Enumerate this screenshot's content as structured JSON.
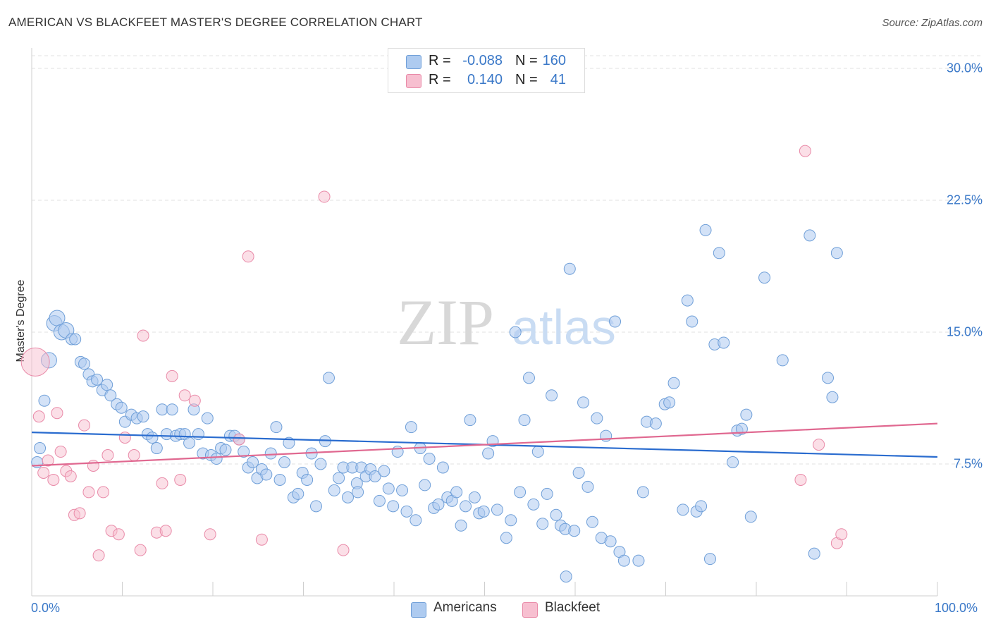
{
  "title": "AMERICAN VS BLACKFEET MASTER'S DEGREE CORRELATION CHART",
  "source": "Source: ZipAtlas.com",
  "watermark": {
    "zip": "ZIP",
    "atlas": "atlas"
  },
  "colors": {
    "americans_fill": "#aecbf0",
    "americans_stroke": "#6f9fd8",
    "americans_line": "#2a6ccf",
    "blackfeet_fill": "#f7bfd0",
    "blackfeet_stroke": "#e98aa8",
    "blackfeet_line": "#e06890",
    "accent_text": "#3a78c8"
  },
  "legend": {
    "r_label": "R =",
    "n_label": "N =",
    "rows": [
      {
        "name": "Americans",
        "r": "-0.088",
        "n": "160"
      },
      {
        "name": "Blackfeet",
        "r": "0.140",
        "n": "41"
      }
    ]
  },
  "chart_data": {
    "type": "scatter",
    "title": "AMERICAN VS BLACKFEET MASTER'S DEGREE CORRELATION CHART",
    "xlabel": "",
    "ylabel": "Master's Degree",
    "xlim": [
      0,
      100
    ],
    "ylim": [
      0,
      30
    ],
    "x_tick_labels": [
      "0.0%",
      "100.0%"
    ],
    "y_ticks": [
      7.5,
      15.0,
      22.5,
      30.0
    ],
    "y_tick_labels": [
      "7.5%",
      "15.0%",
      "22.5%",
      "30.0%"
    ],
    "legend_position": "bottom-center",
    "series": [
      {
        "name": "Americans",
        "r": -0.088,
        "n": 160,
        "trend": {
          "x": [
            0,
            100
          ],
          "y": [
            9.3,
            7.9
          ]
        },
        "points": [
          [
            0.6,
            7.6
          ],
          [
            0.9,
            8.4
          ],
          [
            1.4,
            11.1
          ],
          [
            1.9,
            13.4
          ],
          [
            2.5,
            15.5
          ],
          [
            2.8,
            15.8
          ],
          [
            3.3,
            15.0
          ],
          [
            3.8,
            15.1
          ],
          [
            4.4,
            14.6
          ],
          [
            4.8,
            14.6
          ],
          [
            5.4,
            13.3
          ],
          [
            5.8,
            13.2
          ],
          [
            6.3,
            12.6
          ],
          [
            6.7,
            12.2
          ],
          [
            7.2,
            12.3
          ],
          [
            7.8,
            11.7
          ],
          [
            8.3,
            12.0
          ],
          [
            8.7,
            11.4
          ],
          [
            9.4,
            10.9
          ],
          [
            9.9,
            10.7
          ],
          [
            10.3,
            9.9
          ],
          [
            11.0,
            10.3
          ],
          [
            11.6,
            10.1
          ],
          [
            12.3,
            10.2
          ],
          [
            12.8,
            9.2
          ],
          [
            13.3,
            9.0
          ],
          [
            13.8,
            8.4
          ],
          [
            14.4,
            10.6
          ],
          [
            14.9,
            9.2
          ],
          [
            15.5,
            10.6
          ],
          [
            15.9,
            9.1
          ],
          [
            16.4,
            9.2
          ],
          [
            16.9,
            9.2
          ],
          [
            17.4,
            8.7
          ],
          [
            17.9,
            10.6
          ],
          [
            18.4,
            9.2
          ],
          [
            18.9,
            8.1
          ],
          [
            19.4,
            10.1
          ],
          [
            19.8,
            8.0
          ],
          [
            20.4,
            7.8
          ],
          [
            20.9,
            8.4
          ],
          [
            21.4,
            8.3
          ],
          [
            21.9,
            9.1
          ],
          [
            22.4,
            9.1
          ],
          [
            22.9,
            8.9
          ],
          [
            23.4,
            8.2
          ],
          [
            23.9,
            7.3
          ],
          [
            24.4,
            7.6
          ],
          [
            24.9,
            6.7
          ],
          [
            25.4,
            7.2
          ],
          [
            25.9,
            6.9
          ],
          [
            26.4,
            8.1
          ],
          [
            27.0,
            9.6
          ],
          [
            27.4,
            6.6
          ],
          [
            27.9,
            7.6
          ],
          [
            28.4,
            8.7
          ],
          [
            28.9,
            5.6
          ],
          [
            29.4,
            5.8
          ],
          [
            29.9,
            7.0
          ],
          [
            30.4,
            6.6
          ],
          [
            30.9,
            8.1
          ],
          [
            31.4,
            5.1
          ],
          [
            31.9,
            7.5
          ],
          [
            32.4,
            8.8
          ],
          [
            32.8,
            12.4
          ],
          [
            33.4,
            6.0
          ],
          [
            33.9,
            6.7
          ],
          [
            34.4,
            7.3
          ],
          [
            34.9,
            5.6
          ],
          [
            35.4,
            7.3
          ],
          [
            35.9,
            6.4
          ],
          [
            36.4,
            7.3
          ],
          [
            36.9,
            6.8
          ],
          [
            37.4,
            7.2
          ],
          [
            37.9,
            6.8
          ],
          [
            38.4,
            5.4
          ],
          [
            38.9,
            7.1
          ],
          [
            39.4,
            6.1
          ],
          [
            39.9,
            5.1
          ],
          [
            40.4,
            8.2
          ],
          [
            40.9,
            6.0
          ],
          [
            41.4,
            4.8
          ],
          [
            41.9,
            9.6
          ],
          [
            42.4,
            4.3
          ],
          [
            42.9,
            8.4
          ],
          [
            43.4,
            6.3
          ],
          [
            43.9,
            7.8
          ],
          [
            44.4,
            5.0
          ],
          [
            44.9,
            5.2
          ],
          [
            45.4,
            7.3
          ],
          [
            45.9,
            5.6
          ],
          [
            46.4,
            5.4
          ],
          [
            46.9,
            5.9
          ],
          [
            47.4,
            4.0
          ],
          [
            47.9,
            5.1
          ],
          [
            48.4,
            10.0
          ],
          [
            48.9,
            5.6
          ],
          [
            49.4,
            4.7
          ],
          [
            49.9,
            4.8
          ],
          [
            50.4,
            8.1
          ],
          [
            50.9,
            8.8
          ],
          [
            51.4,
            4.9
          ],
          [
            52.4,
            3.3
          ],
          [
            52.9,
            4.3
          ],
          [
            53.4,
            15.0
          ],
          [
            53.9,
            5.9
          ],
          [
            54.4,
            10.0
          ],
          [
            54.9,
            12.4
          ],
          [
            55.4,
            5.2
          ],
          [
            55.9,
            8.2
          ],
          [
            56.4,
            4.1
          ],
          [
            56.9,
            5.8
          ],
          [
            57.4,
            11.4
          ],
          [
            57.9,
            4.6
          ],
          [
            58.4,
            4.0
          ],
          [
            58.9,
            3.8
          ],
          [
            59.4,
            18.6
          ],
          [
            59.9,
            3.7
          ],
          [
            60.4,
            7.0
          ],
          [
            60.9,
            11.0
          ],
          [
            61.4,
            6.2
          ],
          [
            61.9,
            4.2
          ],
          [
            62.4,
            10.1
          ],
          [
            62.9,
            3.3
          ],
          [
            63.4,
            9.1
          ],
          [
            63.9,
            3.1
          ],
          [
            64.4,
            15.6
          ],
          [
            64.9,
            2.5
          ],
          [
            65.4,
            2.0
          ],
          [
            67.0,
            2.0
          ],
          [
            67.5,
            5.9
          ],
          [
            67.9,
            9.9
          ],
          [
            68.9,
            9.8
          ],
          [
            69.9,
            10.9
          ],
          [
            70.4,
            11.0
          ],
          [
            70.9,
            12.1
          ],
          [
            71.9,
            4.9
          ],
          [
            72.4,
            16.8
          ],
          [
            72.9,
            15.6
          ],
          [
            73.4,
            4.8
          ],
          [
            73.9,
            5.1
          ],
          [
            74.4,
            20.8
          ],
          [
            74.9,
            2.1
          ],
          [
            75.4,
            14.3
          ],
          [
            75.9,
            19.5
          ],
          [
            76.4,
            14.4
          ],
          [
            77.4,
            7.6
          ],
          [
            77.9,
            9.4
          ],
          [
            78.4,
            9.5
          ],
          [
            78.9,
            10.3
          ],
          [
            79.4,
            4.5
          ],
          [
            80.9,
            18.1
          ],
          [
            82.9,
            13.4
          ],
          [
            85.9,
            20.5
          ],
          [
            86.4,
            2.4
          ],
          [
            87.9,
            12.4
          ],
          [
            88.4,
            11.3
          ],
          [
            88.9,
            19.5
          ],
          [
            59.0,
            1.1
          ],
          [
            36.0,
            5.9
          ]
        ]
      },
      {
        "name": "Blackfeet",
        "r": 0.14,
        "n": 41,
        "trend": {
          "x": [
            0,
            100
          ],
          "y": [
            7.4,
            9.8
          ]
        },
        "points": [
          [
            0.4,
            13.3
          ],
          [
            0.8,
            10.2
          ],
          [
            1.3,
            7.0
          ],
          [
            1.8,
            7.7
          ],
          [
            2.4,
            6.6
          ],
          [
            2.8,
            10.4
          ],
          [
            3.2,
            8.2
          ],
          [
            3.8,
            7.1
          ],
          [
            4.3,
            6.8
          ],
          [
            4.7,
            4.6
          ],
          [
            5.3,
            4.7
          ],
          [
            5.8,
            9.7
          ],
          [
            6.3,
            5.9
          ],
          [
            6.8,
            7.4
          ],
          [
            7.4,
            2.3
          ],
          [
            7.9,
            5.9
          ],
          [
            8.4,
            8.0
          ],
          [
            8.8,
            3.7
          ],
          [
            9.6,
            3.5
          ],
          [
            10.3,
            9.0
          ],
          [
            11.3,
            8.0
          ],
          [
            12.0,
            2.6
          ],
          [
            12.3,
            14.8
          ],
          [
            13.8,
            3.6
          ],
          [
            14.4,
            6.4
          ],
          [
            14.8,
            3.7
          ],
          [
            15.5,
            12.5
          ],
          [
            16.4,
            6.6
          ],
          [
            16.9,
            11.4
          ],
          [
            18.0,
            11.1
          ],
          [
            19.7,
            3.5
          ],
          [
            22.9,
            8.9
          ],
          [
            23.9,
            19.3
          ],
          [
            25.4,
            3.2
          ],
          [
            32.3,
            22.7
          ],
          [
            34.4,
            2.6
          ],
          [
            84.9,
            6.6
          ],
          [
            85.4,
            25.3
          ],
          [
            86.9,
            8.6
          ],
          [
            88.9,
            3.0
          ],
          [
            89.4,
            3.5
          ]
        ]
      }
    ]
  },
  "bottom_legend": [
    "Americans",
    "Blackfeet"
  ]
}
